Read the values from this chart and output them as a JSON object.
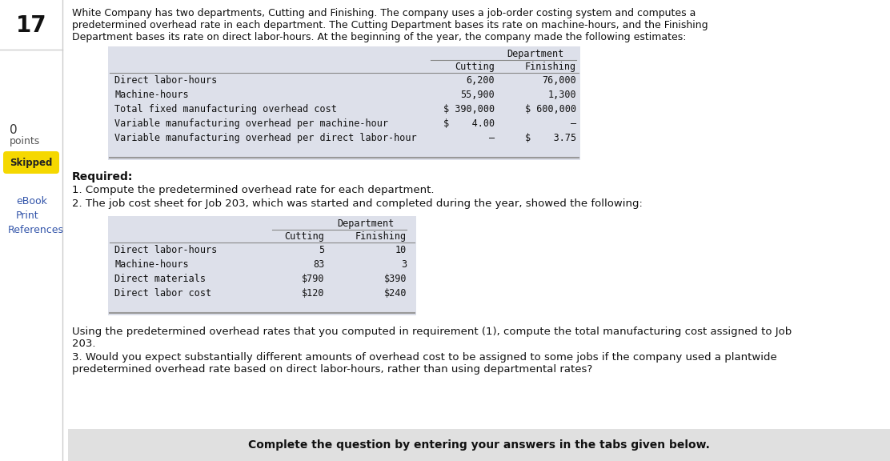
{
  "number": "17",
  "intro_text_lines": [
    "White Company has two departments, Cutting and Finishing. The company uses a job-order costing system and computes a",
    "predetermined overhead rate in each department. The Cutting Department bases its rate on machine-hours, and the Finishing",
    "Department bases its rate on direct labor-hours. At the beginning of the year, the company made the following estimates:"
  ],
  "table1_rows": [
    {
      "label": "Direct labor-hours",
      "c1": "6,200",
      "c2": "76,000"
    },
    {
      "label": "Machine-hours",
      "c1": "55,900",
      "c2": "1,300"
    },
    {
      "label": "Total fixed manufacturing overhead cost",
      "c1": "$ 390,000",
      "c2": "$ 600,000"
    },
    {
      "label": "Variable manufacturing overhead per machine-hour",
      "c1": "$    4.00",
      "c2": "–"
    },
    {
      "label": "Variable manufacturing overhead per direct labor-hour",
      "c1": "–",
      "c2": "$    3.75"
    }
  ],
  "required_text": "Required:",
  "req1": "1. Compute the predetermined overhead rate for each department.",
  "req2": "2. The job cost sheet for Job 203, which was started and completed during the year, showed the following:",
  "table2_rows": [
    {
      "label": "Direct labor-hours",
      "c1": "5",
      "c2": "10"
    },
    {
      "label": "Machine-hours",
      "c1": "83",
      "c2": "3"
    },
    {
      "label": "Direct materials",
      "c1": "$790",
      "c2": "$390"
    },
    {
      "label": "Direct labor cost",
      "c1": "$120",
      "c2": "$240"
    }
  ],
  "para3_lines": [
    "Using the predetermined overhead rates that you computed in requirement (1), compute the total manufacturing cost assigned to Job",
    "203."
  ],
  "req3_lines": [
    "3. Would you expect substantially different amounts of overhead cost to be assigned to some jobs if the company used a plantwide",
    "predetermined overhead rate based on direct labor-hours, rather than using departmental rates?"
  ],
  "footer": "Complete the question by entering your answers in the tabs given below.",
  "bg_color": "#ffffff",
  "table_bg": "#dde0ea",
  "footer_bg": "#e0e0e0",
  "skipped_bg": "#f5d800",
  "mono_font": "DejaVu Sans Mono",
  "sans_font": "DejaVu Sans"
}
